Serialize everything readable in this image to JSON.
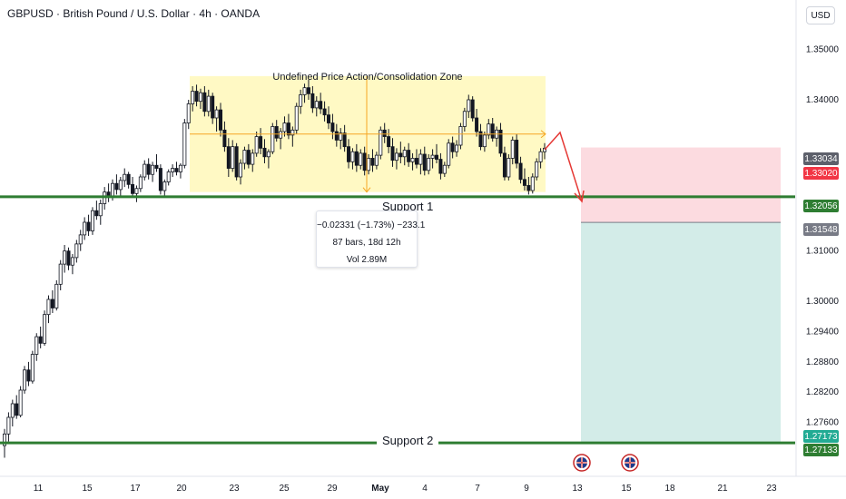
{
  "header": {
    "title": "GBPUSD · British Pound / U.S. Dollar · 4h · OANDA",
    "currency_button": "USD"
  },
  "annotations": {
    "zone_title": "Undefined Price Action/Consolidation Zone",
    "support1": "Support 1",
    "support2": "Support 2",
    "measure": {
      "change": "−0.02331 (−1.73%) −233.1",
      "bars": "87 bars, 18d 12h",
      "volume": "Vol 2.89M"
    }
  },
  "price_tags": [
    {
      "price": 1.33034,
      "label": "1.33034",
      "color": "#5d606b"
    },
    {
      "price": 1.3302,
      "label": "1.33020",
      "color": "#f23645"
    },
    {
      "price": 1.32056,
      "label": "1.32056",
      "color": "#2e7d32"
    },
    {
      "price": 1.31548,
      "label": "1.31548",
      "color": "#787b86"
    },
    {
      "price": 1.27173,
      "label": "1.27173",
      "color": "#22ab94"
    },
    {
      "price": 1.27133,
      "label": "1.27133",
      "color": "#2e7d32"
    }
  ],
  "colors": {
    "up": "#089981",
    "down": "#f23645",
    "candle_body": "#131722",
    "support": "#2e7d32",
    "zone_fill": "#fff9c4",
    "stop_fill": "#fcdbe0",
    "target_fill": "#d3ece8",
    "arrow": "#e53935",
    "measure": "#f5a623"
  },
  "chart_data": {
    "type": "candlestick",
    "symbol": "GBPUSD",
    "timeframe": "4h",
    "y_axis": {
      "min": 1.266,
      "max": 1.356,
      "ticks": [
        1.35,
        1.34,
        1.31,
        1.3,
        1.294,
        1.288,
        1.282,
        1.276
      ],
      "tick_labels": [
        "1.35000",
        "1.34000",
        "1.31000",
        "1.30000",
        "1.29400",
        "1.28800",
        "1.28200",
        "1.27600"
      ]
    },
    "x_axis": {
      "tick_labels": [
        "11",
        "15",
        "17",
        "20",
        "23",
        "25",
        "29",
        "May",
        "4",
        "7",
        "9",
        "13",
        "15",
        "18",
        "21",
        "23"
      ]
    },
    "levels": [
      {
        "name": "Support 1",
        "price": 1.32056
      },
      {
        "name": "Support 2",
        "price": 1.27173
      }
    ],
    "consolidation_zone": {
      "label": "Undefined Price Action/Consolidation Zone",
      "top": 1.3445,
      "bottom": 1.3215,
      "mid": 1.333
    },
    "position": {
      "entry": 1.31548,
      "stop": 1.33034,
      "target": 1.27173
    },
    "measure": {
      "change": -0.02331,
      "percent": -1.73,
      "ticks": -233.1,
      "bars": 87,
      "duration": "18d 12h",
      "volume": "2.89M"
    },
    "candles": [
      [
        1.2712,
        1.2745,
        1.2688,
        1.2735
      ],
      [
        1.2735,
        1.2778,
        1.272,
        1.2768
      ],
      [
        1.2768,
        1.2803,
        1.275,
        1.2795
      ],
      [
        1.2795,
        1.2812,
        1.2765,
        1.2772
      ],
      [
        1.2772,
        1.283,
        1.2768,
        1.2822
      ],
      [
        1.2822,
        1.287,
        1.2815,
        1.2862
      ],
      [
        1.2862,
        1.2878,
        1.283,
        1.284
      ],
      [
        1.284,
        1.29,
        1.2835,
        1.2893
      ],
      [
        1.2893,
        1.2935,
        1.288,
        1.2928
      ],
      [
        1.2928,
        1.2948,
        1.2905,
        1.2915
      ],
      [
        1.2915,
        1.298,
        1.291,
        1.2972
      ],
      [
        1.2972,
        1.301,
        1.2955,
        1.3002
      ],
      [
        1.3002,
        1.302,
        1.2975,
        1.2985
      ],
      [
        1.2985,
        1.304,
        1.298,
        1.3032
      ],
      [
        1.3032,
        1.308,
        1.302,
        1.3072
      ],
      [
        1.3072,
        1.311,
        1.3055,
        1.3098
      ],
      [
        1.3098,
        1.3105,
        1.306,
        1.307
      ],
      [
        1.307,
        1.3092,
        1.3052,
        1.3085
      ],
      [
        1.3085,
        1.312,
        1.3075,
        1.3112
      ],
      [
        1.3112,
        1.314,
        1.3098,
        1.313
      ],
      [
        1.313,
        1.3165,
        1.312,
        1.3155
      ],
      [
        1.3155,
        1.317,
        1.3128,
        1.3138
      ],
      [
        1.3138,
        1.3185,
        1.313,
        1.3178
      ],
      [
        1.3178,
        1.3198,
        1.316,
        1.3168
      ],
      [
        1.3168,
        1.32,
        1.315,
        1.3192
      ],
      [
        1.3192,
        1.3225,
        1.318,
        1.3215
      ],
      [
        1.3215,
        1.3232,
        1.3195,
        1.3205
      ],
      [
        1.3205,
        1.324,
        1.3198,
        1.3232
      ],
      [
        1.3232,
        1.325,
        1.321,
        1.322
      ],
      [
        1.322,
        1.3245,
        1.3205,
        1.3238
      ],
      [
        1.3238,
        1.3262,
        1.3225,
        1.325
      ],
      [
        1.325,
        1.3255,
        1.3222,
        1.323
      ],
      [
        1.323,
        1.3245,
        1.3205,
        1.3212
      ],
      [
        1.3212,
        1.3228,
        1.3195,
        1.3222
      ],
      [
        1.3222,
        1.325,
        1.3215,
        1.3245
      ],
      [
        1.3245,
        1.3278,
        1.3238,
        1.327
      ],
      [
        1.327,
        1.3282,
        1.324,
        1.325
      ],
      [
        1.325,
        1.3275,
        1.3235,
        1.3268
      ],
      [
        1.3268,
        1.329,
        1.3255,
        1.3262
      ],
      [
        1.3262,
        1.327,
        1.321,
        1.3218
      ],
      [
        1.3218,
        1.324,
        1.3205,
        1.3235
      ],
      [
        1.3235,
        1.326,
        1.3228,
        1.3255
      ],
      [
        1.3255,
        1.327,
        1.3245,
        1.3262
      ],
      [
        1.3262,
        1.3275,
        1.3248,
        1.3255
      ],
      [
        1.3255,
        1.3272,
        1.3242,
        1.3268
      ],
      [
        1.3268,
        1.336,
        1.3262,
        1.3352
      ],
      [
        1.3352,
        1.3398,
        1.334,
        1.339
      ],
      [
        1.339,
        1.3425,
        1.3375,
        1.3415
      ],
      [
        1.3415,
        1.3428,
        1.3385,
        1.3395
      ],
      [
        1.3395,
        1.342,
        1.338,
        1.3412
      ],
      [
        1.3412,
        1.3425,
        1.3365,
        1.3375
      ],
      [
        1.3375,
        1.3418,
        1.3365,
        1.3405
      ],
      [
        1.3405,
        1.3412,
        1.335,
        1.3362
      ],
      [
        1.3362,
        1.3385,
        1.3335,
        1.3378
      ],
      [
        1.3378,
        1.3392,
        1.3325,
        1.3338
      ],
      [
        1.3338,
        1.3355,
        1.3295,
        1.3305
      ],
      [
        1.3305,
        1.3322,
        1.3245,
        1.3262
      ],
      [
        1.3262,
        1.3318,
        1.3255,
        1.3305
      ],
      [
        1.3305,
        1.3312,
        1.3238,
        1.3245
      ],
      [
        1.3245,
        1.328,
        1.323,
        1.3272
      ],
      [
        1.3272,
        1.3305,
        1.326,
        1.3298
      ],
      [
        1.3298,
        1.331,
        1.3262,
        1.327
      ],
      [
        1.327,
        1.33,
        1.3255,
        1.3292
      ],
      [
        1.3292,
        1.3335,
        1.3285,
        1.3325
      ],
      [
        1.3325,
        1.3342,
        1.329,
        1.3302
      ],
      [
        1.3302,
        1.332,
        1.3272,
        1.3285
      ],
      [
        1.3285,
        1.33,
        1.3262,
        1.3295
      ],
      [
        1.3295,
        1.3352,
        1.329,
        1.3345
      ],
      [
        1.3345,
        1.3358,
        1.3315,
        1.3322
      ],
      [
        1.3322,
        1.3342,
        1.33,
        1.3335
      ],
      [
        1.3335,
        1.3365,
        1.3325,
        1.3352
      ],
      [
        1.3352,
        1.337,
        1.332,
        1.3328
      ],
      [
        1.3328,
        1.3345,
        1.3305,
        1.3338
      ],
      [
        1.3338,
        1.3392,
        1.333,
        1.3385
      ],
      [
        1.3385,
        1.3418,
        1.337,
        1.3408
      ],
      [
        1.3408,
        1.343,
        1.3392,
        1.3422
      ],
      [
        1.3422,
        1.3438,
        1.3398,
        1.341
      ],
      [
        1.341,
        1.3425,
        1.3372,
        1.3382
      ],
      [
        1.3382,
        1.3405,
        1.3365,
        1.3395
      ],
      [
        1.3395,
        1.3412,
        1.337,
        1.338
      ],
      [
        1.338,
        1.3395,
        1.3355,
        1.3368
      ],
      [
        1.3368,
        1.3385,
        1.334,
        1.3352
      ],
      [
        1.3352,
        1.337,
        1.332,
        1.3335
      ],
      [
        1.3335,
        1.335,
        1.3305,
        1.3318
      ],
      [
        1.3318,
        1.3342,
        1.33,
        1.3332
      ],
      [
        1.3332,
        1.3348,
        1.3295,
        1.3305
      ],
      [
        1.3305,
        1.332,
        1.3262,
        1.3275
      ],
      [
        1.3275,
        1.3302,
        1.326,
        1.3295
      ],
      [
        1.3295,
        1.331,
        1.3255,
        1.3268
      ],
      [
        1.3268,
        1.33,
        1.326,
        1.3292
      ],
      [
        1.3292,
        1.3305,
        1.3248,
        1.3258
      ],
      [
        1.3258,
        1.329,
        1.325,
        1.3282
      ],
      [
        1.3282,
        1.33,
        1.3255,
        1.3268
      ],
      [
        1.3268,
        1.3295,
        1.326,
        1.3288
      ],
      [
        1.3288,
        1.3345,
        1.328,
        1.3338
      ],
      [
        1.3338,
        1.3352,
        1.3312,
        1.3325
      ],
      [
        1.3325,
        1.334,
        1.3292,
        1.3305
      ],
      [
        1.3305,
        1.3322,
        1.3265,
        1.3278
      ],
      [
        1.3278,
        1.3302,
        1.326,
        1.3292
      ],
      [
        1.3292,
        1.3315,
        1.3272,
        1.3285
      ],
      [
        1.3285,
        1.3305,
        1.3268,
        1.3298
      ],
      [
        1.3298,
        1.3312,
        1.3265,
        1.3275
      ],
      [
        1.3275,
        1.3292,
        1.3258,
        1.3282
      ],
      [
        1.3282,
        1.33,
        1.3262,
        1.327
      ],
      [
        1.327,
        1.33,
        1.325,
        1.329
      ],
      [
        1.329,
        1.3305,
        1.3248,
        1.3258
      ],
      [
        1.3258,
        1.329,
        1.325,
        1.3282
      ],
      [
        1.3282,
        1.33,
        1.3262,
        1.3288
      ],
      [
        1.3288,
        1.331,
        1.3272,
        1.328
      ],
      [
        1.328,
        1.3292,
        1.324,
        1.3252
      ],
      [
        1.3252,
        1.3275,
        1.3245,
        1.3268
      ],
      [
        1.3268,
        1.332,
        1.3262,
        1.3312
      ],
      [
        1.3312,
        1.3325,
        1.3282,
        1.3295
      ],
      [
        1.3295,
        1.3318,
        1.3285,
        1.3308
      ],
      [
        1.3308,
        1.3352,
        1.33,
        1.3345
      ],
      [
        1.3345,
        1.3382,
        1.3335,
        1.3375
      ],
      [
        1.3375,
        1.3408,
        1.3362,
        1.3398
      ],
      [
        1.3398,
        1.3405,
        1.3355,
        1.3362
      ],
      [
        1.3362,
        1.338,
        1.3325,
        1.3335
      ],
      [
        1.3335,
        1.335,
        1.3298,
        1.3305
      ],
      [
        1.3305,
        1.3335,
        1.3295,
        1.3328
      ],
      [
        1.3328,
        1.336,
        1.332,
        1.335
      ],
      [
        1.335,
        1.3362,
        1.3315,
        1.3322
      ],
      [
        1.3322,
        1.3345,
        1.3305,
        1.3338
      ],
      [
        1.3338,
        1.3352,
        1.3285,
        1.3292
      ],
      [
        1.3292,
        1.3305,
        1.3238,
        1.3245
      ],
      [
        1.3245,
        1.329,
        1.3238,
        1.3282
      ],
      [
        1.3282,
        1.3325,
        1.327,
        1.3318
      ],
      [
        1.3318,
        1.333,
        1.3262,
        1.3272
      ],
      [
        1.3272,
        1.3285,
        1.3232,
        1.324
      ],
      [
        1.324,
        1.3262,
        1.3218,
        1.3228
      ],
      [
        1.3228,
        1.3245,
        1.321,
        1.3218
      ],
      [
        1.3218,
        1.3252,
        1.3212,
        1.3245
      ],
      [
        1.3245,
        1.3282,
        1.3238,
        1.3275
      ],
      [
        1.3275,
        1.3302,
        1.3262,
        1.3295
      ],
      [
        1.3295,
        1.3312,
        1.328,
        1.3302
      ]
    ]
  }
}
